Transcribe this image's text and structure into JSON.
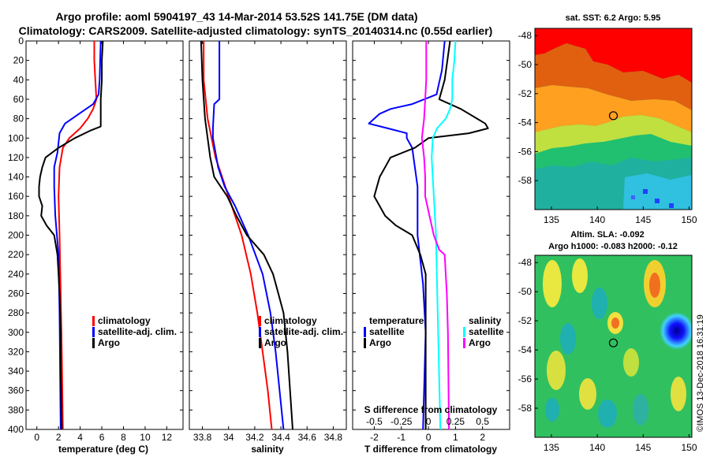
{
  "title_line1": "Argo profile: aoml 5904197_43 14-Mar-2014 53.52S 141.75E (DM data)",
  "title_line2": "Climatology: CARS2009. Satellite-adjusted climatology: synTS_20140314.nc (0.55d earlier)",
  "watermark": "©IMOS 13-Dec-2018 16:31:19",
  "colors": {
    "climatology": "#ff0000",
    "satellite": "#0000ff",
    "argo": "#000000",
    "sal_sat": "#00ffff",
    "sal_argo": "#ff00ff"
  },
  "depth_ticks": [
    "0",
    "20",
    "40",
    "60",
    "80",
    "100",
    "120",
    "140",
    "160",
    "180",
    "200",
    "220",
    "240",
    "260",
    "280",
    "300",
    "320",
    "340",
    "360",
    "380",
    "400"
  ],
  "chart_data": [
    {
      "type": "line",
      "xlabel": "temperature (deg C)",
      "xlim": [
        -1,
        13.5
      ],
      "ylim": [
        0,
        400
      ],
      "xticks": [
        "0",
        "2",
        "4",
        "6",
        "8",
        "10",
        "12"
      ],
      "legend": [
        "climatology",
        "satellite-adj. clim.",
        "Argo"
      ],
      "series": [
        {
          "name": "climatology",
          "depth": [
            0,
            20,
            40,
            60,
            70,
            80,
            90,
            100,
            110,
            130,
            160,
            200,
            260,
            320,
            400
          ],
          "values": [
            5.3,
            5.3,
            5.4,
            5.5,
            5.2,
            4.7,
            4.0,
            3.0,
            2.4,
            2.1,
            2.0,
            2.1,
            2.2,
            2.3,
            2.4
          ]
        },
        {
          "name": "satellite-adj. clim.",
          "depth": [
            0,
            20,
            40,
            55,
            65,
            75,
            85,
            95,
            105,
            115,
            130,
            150,
            180,
            220,
            280,
            400
          ],
          "values": [
            5.9,
            5.85,
            5.8,
            5.7,
            5.2,
            3.9,
            2.6,
            2.1,
            2.0,
            1.9,
            1.6,
            1.6,
            1.7,
            2.0,
            2.1,
            2.2
          ]
        },
        {
          "name": "Argo",
          "depth": [
            0,
            20,
            40,
            60,
            80,
            88,
            92,
            100,
            110,
            120,
            130,
            140,
            150,
            160,
            170,
            180,
            190,
            200,
            220,
            240,
            260,
            300,
            340,
            400
          ],
          "values": [
            6.1,
            6.0,
            6.0,
            5.9,
            5.9,
            5.9,
            5.0,
            3.5,
            2.0,
            0.8,
            0.5,
            0.3,
            0.2,
            0.2,
            0.5,
            0.4,
            0.9,
            1.6,
            1.9,
            2.0,
            2.1,
            2.2,
            2.2,
            2.3
          ]
        }
      ]
    },
    {
      "type": "line",
      "xlabel": "salinity",
      "xlim": [
        33.7,
        34.9
      ],
      "ylim": [
        0,
        400
      ],
      "xticks": [
        "33.8",
        "34",
        "34.2",
        "34.4",
        "34.6",
        "34.8"
      ],
      "legend": [
        "climatology",
        "satellite-adj. clim.",
        "Argo"
      ],
      "series": [
        {
          "name": "climatology",
          "depth": [
            0,
            40,
            80,
            100,
            120,
            140,
            160,
            180,
            200,
            240,
            280,
            320,
            360,
            400
          ],
          "values": [
            33.81,
            33.81,
            33.84,
            33.87,
            33.9,
            33.95,
            34.0,
            34.05,
            34.1,
            34.17,
            34.22,
            34.26,
            34.3,
            34.33
          ]
        },
        {
          "name": "satellite-adj. clim.",
          "depth": [
            0,
            60,
            65,
            90,
            100,
            130,
            150,
            170,
            200,
            240,
            280,
            320,
            360,
            400
          ],
          "values": [
            33.93,
            33.93,
            33.89,
            33.88,
            33.88,
            33.92,
            33.97,
            34.05,
            34.15,
            34.26,
            34.32,
            34.36,
            34.39,
            34.42
          ]
        },
        {
          "name": "Argo",
          "depth": [
            0,
            40,
            80,
            100,
            120,
            140,
            150,
            160,
            180,
            200,
            220,
            240,
            260,
            280,
            320,
            360,
            400
          ],
          "values": [
            33.79,
            33.8,
            33.82,
            33.84,
            33.86,
            33.89,
            33.94,
            33.99,
            34.06,
            34.14,
            34.27,
            34.34,
            34.38,
            34.42,
            34.45,
            34.47,
            34.49
          ]
        }
      ]
    },
    {
      "type": "line",
      "xlabel": "T difference from climatology",
      "xlabel_top": "S difference from climatology",
      "xlim": [
        -2.8,
        3.0
      ],
      "ylim": [
        0,
        400
      ],
      "xticks": [
        "-2",
        "-1",
        "0",
        "1",
        "2"
      ],
      "xticks_top": [
        "-0.5",
        "-0.25",
        "0",
        "0.25",
        "0.5"
      ],
      "legend_left": [
        "temperature",
        "satellite",
        "Argo"
      ],
      "legend_right": [
        "salinity",
        "satellite",
        "Argo"
      ],
      "series": [
        {
          "name": "T satellite",
          "depth": [
            0,
            30,
            55,
            65,
            70,
            75,
            80,
            85,
            90,
            95,
            100,
            110,
            130,
            150,
            200,
            250,
            300,
            400
          ],
          "values": [
            0.6,
            0.5,
            0.3,
            -0.6,
            -1.4,
            -1.8,
            -2.0,
            -2.2,
            -1.5,
            -0.8,
            -0.8,
            -0.6,
            -0.5,
            -0.4,
            -0.4,
            -0.2,
            -0.1,
            -0.2
          ]
        },
        {
          "name": "T Argo",
          "depth": [
            0,
            20,
            40,
            60,
            70,
            80,
            85,
            90,
            95,
            100,
            110,
            120,
            130,
            140,
            160,
            180,
            190,
            200,
            220,
            240,
            280,
            400
          ],
          "values": [
            0.8,
            0.7,
            0.6,
            0.4,
            1.2,
            1.8,
            2.1,
            2.2,
            1.5,
            0.0,
            -0.5,
            -1.4,
            -1.6,
            -1.8,
            -2.0,
            -1.6,
            -1.2,
            -0.6,
            -0.3,
            -0.1,
            -0.1,
            -0.1
          ]
        },
        {
          "name": "S satellite",
          "depth": [
            0,
            20,
            40,
            60,
            70,
            80,
            90,
            100,
            120,
            160,
            200,
            250,
            300,
            350,
            400
          ],
          "values": [
            0.25,
            0.24,
            0.22,
            0.22,
            0.2,
            0.16,
            0.08,
            0.04,
            0.03,
            0.05,
            0.07,
            0.08,
            0.09,
            0.1,
            0.11
          ]
        },
        {
          "name": "S Argo",
          "depth": [
            0,
            20,
            40,
            60,
            80,
            90,
            100,
            110,
            120,
            140,
            160,
            180,
            200,
            215,
            220,
            240,
            260,
            300,
            400
          ],
          "values": [
            -0.02,
            -0.02,
            -0.02,
            -0.03,
            -0.04,
            -0.05,
            -0.06,
            -0.05,
            -0.04,
            -0.03,
            -0.03,
            0.01,
            0.05,
            0.1,
            0.15,
            0.16,
            0.17,
            0.18,
            0.19
          ]
        }
      ]
    },
    {
      "type": "heatmap",
      "title": "sat. SST: 6.2 Argo: 5.95",
      "xticks": [
        "135",
        "140",
        "145",
        "150"
      ],
      "yticks": [
        "-48",
        "-50",
        "-52",
        "-54",
        "-56",
        "-58"
      ],
      "marker": {
        "lon": 141.75,
        "lat": -53.52
      }
    },
    {
      "type": "heatmap",
      "title": "Altim. SLA: -0.092",
      "subtitle": "Argo h1000: -0.083 h2000: -0.12",
      "xticks": [
        "135",
        "140",
        "145",
        "150"
      ],
      "yticks": [
        "-48",
        "-50",
        "-52",
        "-54",
        "-56",
        "-58"
      ],
      "marker": {
        "lon": 141.75,
        "lat": -53.52
      }
    }
  ]
}
